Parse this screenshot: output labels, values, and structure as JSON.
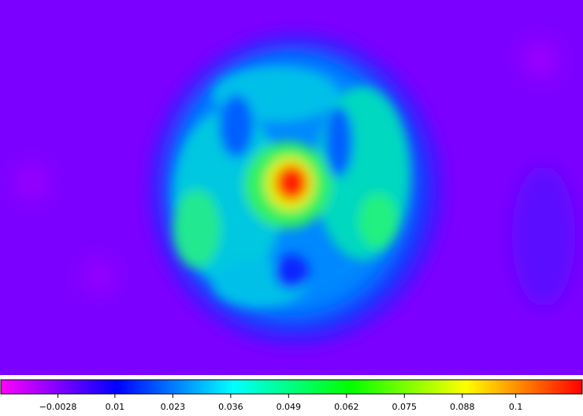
{
  "chart_data": {
    "type": "image",
    "colorbar": {
      "lim": [
        -0.0158,
        0.1151
      ],
      "ticks": [
        {
          "value": -0.0028,
          "label": "−0.0028"
        },
        0.01,
        0.023,
        0.036,
        0.049,
        0.062,
        0.075,
        0.088,
        0.1
      ]
    }
  }
}
